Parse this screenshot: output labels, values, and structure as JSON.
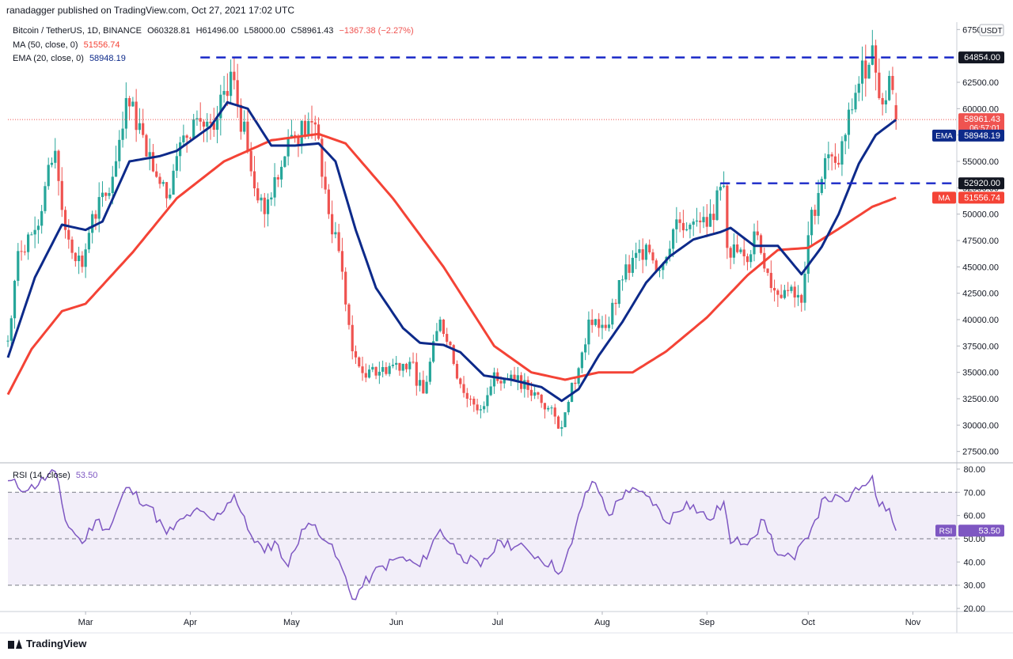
{
  "header": {
    "published": "ranadagger published on TradingView.com, Oct 27, 2021 17:02 UTC"
  },
  "legend": {
    "symbol": "Bitcoin / TetherUS, 1D, BINANCE",
    "open": "O60328.81",
    "high": "H61496.00",
    "low": "L58000.00",
    "close": "C58961.43",
    "change": "−1367.38 (−2.27%)",
    "ma_label": "MA (50, close, 0)",
    "ma_value": "51556.74",
    "ema_label": "EMA (20, close, 0)",
    "ema_value": "58948.19",
    "rsi_label": "RSI (14, close)",
    "rsi_value": "53.50"
  },
  "colors": {
    "up": "#26a69a",
    "down": "#ef5350",
    "ema": "#0d2a8a",
    "ma": "#f44336",
    "rsi": "#7e57c2",
    "hline": "#1a29c8"
  },
  "branding": {
    "logo_text": "TradingView"
  },
  "chart_data": {
    "type": "candlestick",
    "currency": "USDT",
    "x_labels": [
      {
        "label": "Mar",
        "date": "2021-03-01"
      },
      {
        "label": "Apr",
        "date": "2021-04-01"
      },
      {
        "label": "May",
        "date": "2021-05-01"
      },
      {
        "label": "Jun",
        "date": "2021-06-01"
      },
      {
        "label": "Jul",
        "date": "2021-07-01"
      },
      {
        "label": "Aug",
        "date": "2021-08-01"
      },
      {
        "label": "Sep",
        "date": "2021-09-01"
      },
      {
        "label": "Oct",
        "date": "2021-10-01"
      },
      {
        "label": "Nov",
        "date": "2021-11-01"
      }
    ],
    "x_range": [
      "2021-02-06",
      "2021-11-14"
    ],
    "price_ticks": [
      "67500.00",
      "62500.00",
      "60000.00",
      "57500.00",
      "55000.00",
      "52500.00",
      "50000.00",
      "47500.00",
      "45000.00",
      "42500.00",
      "40000.00",
      "37500.00",
      "35000.00",
      "32500.00",
      "30000.00",
      "27500.00"
    ],
    "price_range": [
      26800,
      68200
    ],
    "price_labels": [
      {
        "text": "64854.00",
        "price": 64854,
        "style": "dark"
      },
      {
        "text": "58961.43",
        "price": 58961.43,
        "style": "red",
        "sub": "06:57:01"
      },
      {
        "text": "58948.19",
        "price": 58948.19,
        "style": "ema",
        "tag": "EMA"
      },
      {
        "text": "52920.00",
        "price": 52920,
        "style": "dark"
      },
      {
        "text": "51556.74",
        "price": 51556.74,
        "style": "ma",
        "tag": "MA"
      }
    ],
    "horizontal_lines": [
      {
        "price": 64854,
        "from": "2021-04-04",
        "to": "2021-11-14"
      },
      {
        "price": 52920,
        "from": "2021-09-05",
        "to": "2021-11-14"
      }
    ],
    "close_anchors": [
      [
        "2021-02-06",
        38000
      ],
      [
        "2021-02-09",
        46500
      ],
      [
        "2021-02-14",
        48500
      ],
      [
        "2021-02-20",
        56000
      ],
      [
        "2021-02-23",
        48500
      ],
      [
        "2021-02-28",
        45000
      ],
      [
        "2021-03-03",
        50000
      ],
      [
        "2021-03-08",
        52000
      ],
      [
        "2021-03-13",
        61000
      ],
      [
        "2021-03-18",
        57500
      ],
      [
        "2021-03-25",
        51500
      ],
      [
        "2021-03-28",
        55500
      ],
      [
        "2021-04-02",
        59000
      ],
      [
        "2021-04-08",
        58000
      ],
      [
        "2021-04-13",
        63500
      ],
      [
        "2021-04-18",
        56000
      ],
      [
        "2021-04-23",
        50000
      ],
      [
        "2021-04-26",
        53500
      ],
      [
        "2021-05-01",
        57500
      ],
      [
        "2021-05-08",
        58500
      ],
      [
        "2021-05-12",
        50000
      ],
      [
        "2021-05-15",
        46500
      ],
      [
        "2021-05-19",
        37000
      ],
      [
        "2021-05-23",
        34500
      ],
      [
        "2021-05-28",
        35500
      ],
      [
        "2021-06-05",
        36000
      ],
      [
        "2021-06-09",
        33000
      ],
      [
        "2021-06-14",
        40000
      ],
      [
        "2021-06-18",
        35800
      ],
      [
        "2021-06-22",
        32500
      ],
      [
        "2021-06-26",
        31500
      ],
      [
        "2021-06-30",
        35000
      ],
      [
        "2021-07-06",
        34200
      ],
      [
        "2021-07-12",
        33100
      ],
      [
        "2021-07-20",
        29800
      ],
      [
        "2021-07-22",
        32200
      ],
      [
        "2021-07-25",
        35400
      ],
      [
        "2021-07-28",
        40000
      ],
      [
        "2021-08-02",
        39200
      ],
      [
        "2021-08-07",
        43800
      ],
      [
        "2021-08-14",
        47100
      ],
      [
        "2021-08-18",
        44700
      ],
      [
        "2021-08-23",
        49500
      ],
      [
        "2021-08-27",
        49000
      ],
      [
        "2021-09-01",
        48800
      ],
      [
        "2021-09-06",
        52700
      ],
      [
        "2021-09-07",
        46800
      ],
      [
        "2021-09-12",
        46000
      ],
      [
        "2021-09-16",
        48000
      ],
      [
        "2021-09-20",
        43000
      ],
      [
        "2021-09-24",
        42800
      ],
      [
        "2021-09-29",
        41600
      ],
      [
        "2021-10-01",
        48000
      ],
      [
        "2021-10-06",
        55300
      ],
      [
        "2021-10-10",
        54700
      ],
      [
        "2021-10-15",
        61500
      ],
      [
        "2021-10-20",
        66000
      ],
      [
        "2021-10-22",
        61000
      ],
      [
        "2021-10-24",
        60800
      ],
      [
        "2021-10-25",
        63100
      ],
      [
        "2021-10-27",
        58961.43
      ]
    ],
    "ema_anchors": [
      [
        "2021-02-06",
        36400
      ],
      [
        "2021-02-14",
        44000
      ],
      [
        "2021-02-22",
        49000
      ],
      [
        "2021-03-01",
        48500
      ],
      [
        "2021-03-06",
        49300
      ],
      [
        "2021-03-14",
        55000
      ],
      [
        "2021-03-23",
        55500
      ],
      [
        "2021-03-28",
        56000
      ],
      [
        "2021-04-07",
        58300
      ],
      [
        "2021-04-12",
        60600
      ],
      [
        "2021-04-18",
        60000
      ],
      [
        "2021-04-25",
        56500
      ],
      [
        "2021-05-02",
        56500
      ],
      [
        "2021-05-09",
        56700
      ],
      [
        "2021-05-14",
        55000
      ],
      [
        "2021-05-20",
        48500
      ],
      [
        "2021-05-26",
        43000
      ],
      [
        "2021-06-03",
        39200
      ],
      [
        "2021-06-08",
        37800
      ],
      [
        "2021-06-15",
        37600
      ],
      [
        "2021-06-20",
        36900
      ],
      [
        "2021-06-27",
        34700
      ],
      [
        "2021-07-05",
        34300
      ],
      [
        "2021-07-14",
        33600
      ],
      [
        "2021-07-20",
        32300
      ],
      [
        "2021-07-25",
        33400
      ],
      [
        "2021-07-31",
        36600
      ],
      [
        "2021-08-07",
        39800
      ],
      [
        "2021-08-14",
        43500
      ],
      [
        "2021-08-21",
        46000
      ],
      [
        "2021-08-28",
        47600
      ],
      [
        "2021-09-05",
        48300
      ],
      [
        "2021-09-08",
        48700
      ],
      [
        "2021-09-15",
        47000
      ],
      [
        "2021-09-22",
        47000
      ],
      [
        "2021-09-29",
        44300
      ],
      [
        "2021-10-05",
        46900
      ],
      [
        "2021-10-10",
        50000
      ],
      [
        "2021-10-16",
        54800
      ],
      [
        "2021-10-21",
        57500
      ],
      [
        "2021-10-27",
        58948.19
      ]
    ],
    "ma_anchors": [
      [
        "2021-02-06",
        32900
      ],
      [
        "2021-02-13",
        37200
      ],
      [
        "2021-02-22",
        40800
      ],
      [
        "2021-03-01",
        41500
      ],
      [
        "2021-03-15",
        46400
      ],
      [
        "2021-03-28",
        51500
      ],
      [
        "2021-04-11",
        55000
      ],
      [
        "2021-04-25",
        57000
      ],
      [
        "2021-05-09",
        57600
      ],
      [
        "2021-05-17",
        56700
      ],
      [
        "2021-05-31",
        51500
      ],
      [
        "2021-06-15",
        45000
      ],
      [
        "2021-06-30",
        37500
      ],
      [
        "2021-07-11",
        35000
      ],
      [
        "2021-07-21",
        34300
      ],
      [
        "2021-07-31",
        35000
      ],
      [
        "2021-08-10",
        35000
      ],
      [
        "2021-08-20",
        37000
      ],
      [
        "2021-09-01",
        40200
      ],
      [
        "2021-09-13",
        44200
      ],
      [
        "2021-09-22",
        46600
      ],
      [
        "2021-10-01",
        46800
      ],
      [
        "2021-10-10",
        48600
      ],
      [
        "2021-10-20",
        50700
      ],
      [
        "2021-10-27",
        51556.74
      ]
    ],
    "rsi_ticks": [
      "80.00",
      "70.00",
      "60.00",
      "50.00",
      "40.00",
      "30.00",
      "20.00"
    ],
    "rsi_range": [
      19,
      81
    ],
    "rsi_band": [
      30,
      70
    ],
    "rsi_current_label": {
      "tag": "RSI",
      "text": "53.50",
      "value": 53.5
    },
    "rsi_anchors": [
      [
        "2021-02-06",
        75
      ],
      [
        "2021-02-12",
        71
      ],
      [
        "2021-02-20",
        79
      ],
      [
        "2021-02-23",
        58
      ],
      [
        "2021-02-28",
        48
      ],
      [
        "2021-03-04",
        58
      ],
      [
        "2021-03-08",
        54
      ],
      [
        "2021-03-13",
        72
      ],
      [
        "2021-03-20",
        64
      ],
      [
        "2021-03-25",
        52
      ],
      [
        "2021-04-02",
        62
      ],
      [
        "2021-04-08",
        58
      ],
      [
        "2021-04-14",
        69
      ],
      [
        "2021-04-18",
        54
      ],
      [
        "2021-04-23",
        44
      ],
      [
        "2021-04-26",
        49
      ],
      [
        "2021-04-30",
        38
      ],
      [
        "2021-05-04",
        54
      ],
      [
        "2021-05-08",
        56
      ],
      [
        "2021-05-12",
        48
      ],
      [
        "2021-05-16",
        37
      ],
      [
        "2021-05-19",
        24
      ],
      [
        "2021-05-25",
        35
      ],
      [
        "2021-06-02",
        42
      ],
      [
        "2021-06-08",
        38
      ],
      [
        "2021-06-14",
        54
      ],
      [
        "2021-06-20",
        43
      ],
      [
        "2021-06-26",
        38
      ],
      [
        "2021-07-02",
        49
      ],
      [
        "2021-07-10",
        45
      ],
      [
        "2021-07-20",
        36
      ],
      [
        "2021-07-23",
        48
      ],
      [
        "2021-07-27",
        70
      ],
      [
        "2021-07-30",
        74
      ],
      [
        "2021-08-03",
        60
      ],
      [
        "2021-08-08",
        71
      ],
      [
        "2021-08-15",
        68
      ],
      [
        "2021-08-20",
        57
      ],
      [
        "2021-08-26",
        66
      ],
      [
        "2021-09-02",
        58
      ],
      [
        "2021-09-06",
        66
      ],
      [
        "2021-09-08",
        48
      ],
      [
        "2021-09-14",
        50
      ],
      [
        "2021-09-18",
        58
      ],
      [
        "2021-09-22",
        43
      ],
      [
        "2021-09-27",
        41
      ],
      [
        "2021-09-30",
        50
      ],
      [
        "2021-10-03",
        58
      ],
      [
        "2021-10-06",
        68
      ],
      [
        "2021-10-12",
        66
      ],
      [
        "2021-10-16",
        71
      ],
      [
        "2021-10-20",
        77
      ],
      [
        "2021-10-22",
        64
      ],
      [
        "2021-10-25",
        63
      ],
      [
        "2021-10-27",
        53.5
      ]
    ]
  }
}
